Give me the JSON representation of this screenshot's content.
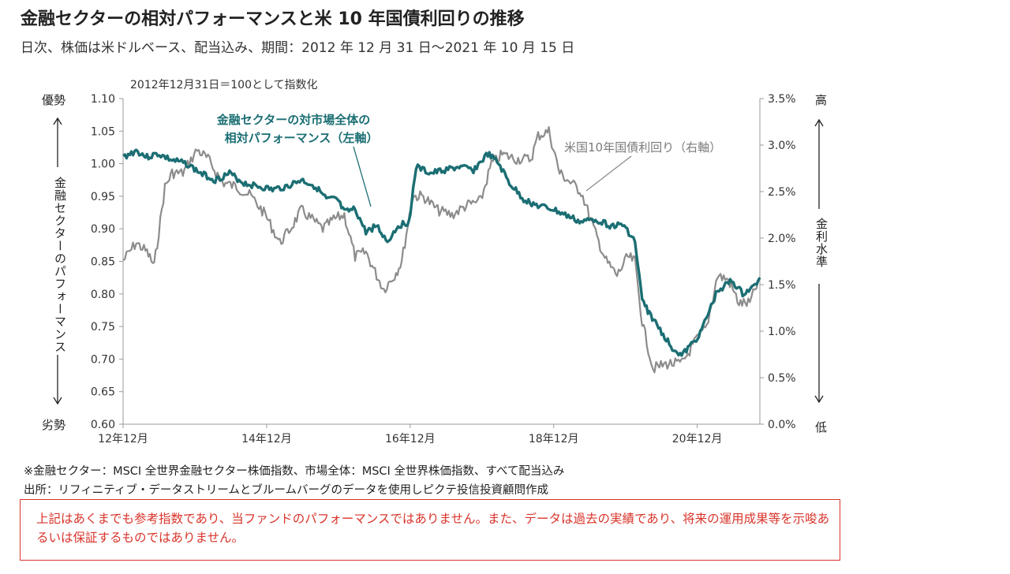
{
  "title": "金融セクターの相対パフォーマンスと米 10 年国債利回りの推移",
  "subtitle": "日次、株価は米ドルベース、配当込み、期間：2012 年 12 月 31 日～2021 年 10 月 15 日",
  "index_note": "2012年12月31日＝100として指数化",
  "left_axis": {
    "top_word": "優勢",
    "bottom_word": "劣勢",
    "label": "金融セクターのパフォーマンス"
  },
  "right_axis": {
    "top_word": "高",
    "bottom_word": "低",
    "label": "金利水準"
  },
  "notes": [
    "※金融セクター：MSCI 全世界金融セクター株価指数、市場全体：MSCI 全世界株価指数、すべて配当込み",
    "出所：リフィニティブ・データストリームとブルームバーグのデータを使用しピクテ投信投資顧問作成"
  ],
  "disclaimer": "上記はあくまでも参考指数であり、当ファンドのパフォーマンスではありません。また、データは過去の実績であり、将来の運用成果等を示唆あるいは保証するものではありません。",
  "colors": {
    "relative": "#1b6e73",
    "yield": "#8c8c8c",
    "disclaimer": "#d9342b"
  },
  "chart_data": {
    "type": "line",
    "x_tick_labels": [
      "12年12月",
      "14年12月",
      "16年12月",
      "18年12月",
      "20年12月"
    ],
    "x_tick_positions": [
      2012.917,
      2014.917,
      2016.917,
      2018.917,
      2020.917
    ],
    "xlim": [
      2012.917,
      2021.79
    ],
    "y_left": {
      "ticks": [
        "0.60",
        "0.65",
        "0.70",
        "0.75",
        "0.80",
        "0.85",
        "0.90",
        "0.95",
        "1.00",
        "1.05",
        "1.10"
      ],
      "ylim": [
        0.6,
        1.1
      ]
    },
    "y_right": {
      "ticks": [
        "0.0%",
        "0.5%",
        "1.0%",
        "1.5%",
        "2.0%",
        "2.5%",
        "3.0%",
        "3.5%"
      ],
      "ylim": [
        0.0,
        3.5
      ],
      "unit": "%"
    },
    "series": [
      {
        "name": "金融セクターの対市場全体の相対パフォーマンス（左軸）",
        "axis": "left",
        "x": [
          2012.92,
          2013.1,
          2013.25,
          2013.4,
          2013.6,
          2013.8,
          2014.0,
          2014.2,
          2014.4,
          2014.6,
          2014.8,
          2015.0,
          2015.2,
          2015.4,
          2015.6,
          2015.75,
          2015.9,
          2016.0,
          2016.15,
          2016.3,
          2016.45,
          2016.6,
          2016.75,
          2016.9,
          2017.0,
          2017.2,
          2017.4,
          2017.6,
          2017.8,
          2018.0,
          2018.15,
          2018.3,
          2018.5,
          2018.7,
          2018.9,
          2019.1,
          2019.3,
          2019.5,
          2019.7,
          2019.9,
          2020.05,
          2020.15,
          2020.25,
          2020.4,
          2020.55,
          2020.7,
          2020.9,
          2021.0,
          2021.2,
          2021.4,
          2021.55,
          2021.7,
          2021.79
        ],
        "y": [
          1.01,
          1.02,
          1.01,
          1.015,
          1.005,
          1.0,
          0.985,
          0.975,
          0.985,
          0.97,
          0.965,
          0.96,
          0.965,
          0.975,
          0.965,
          0.945,
          0.945,
          0.925,
          0.93,
          0.895,
          0.905,
          0.88,
          0.905,
          0.91,
          0.995,
          0.985,
          0.99,
          0.995,
          0.99,
          1.015,
          1.0,
          0.97,
          0.945,
          0.935,
          0.93,
          0.92,
          0.91,
          0.915,
          0.905,
          0.905,
          0.88,
          0.79,
          0.77,
          0.745,
          0.72,
          0.705,
          0.73,
          0.75,
          0.805,
          0.82,
          0.8,
          0.81,
          0.825
        ]
      },
      {
        "name": "米国10年国債利回り（右軸）",
        "axis": "right",
        "x": [
          2012.92,
          2013.1,
          2013.25,
          2013.35,
          2013.5,
          2013.6,
          2013.75,
          2013.95,
          2014.1,
          2014.3,
          2014.5,
          2014.7,
          2014.9,
          2015.1,
          2015.25,
          2015.4,
          2015.55,
          2015.7,
          2015.85,
          2016.0,
          2016.15,
          2016.3,
          2016.45,
          2016.55,
          2016.7,
          2016.8,
          2016.95,
          2017.1,
          2017.3,
          2017.5,
          2017.7,
          2017.9,
          2018.05,
          2018.2,
          2018.4,
          2018.6,
          2018.7,
          2018.85,
          2019.0,
          2019.15,
          2019.3,
          2019.5,
          2019.65,
          2019.8,
          2019.95,
          2020.05,
          2020.15,
          2020.3,
          2020.5,
          2020.7,
          2020.9,
          2021.05,
          2021.2,
          2021.35,
          2021.5,
          2021.65,
          2021.79
        ],
        "y": [
          1.76,
          1.95,
          1.85,
          1.7,
          2.55,
          2.7,
          2.7,
          2.95,
          2.85,
          2.6,
          2.55,
          2.45,
          2.25,
          1.95,
          2.1,
          2.3,
          2.2,
          2.1,
          2.2,
          2.25,
          1.8,
          1.85,
          1.6,
          1.45,
          1.6,
          1.75,
          2.45,
          2.45,
          2.3,
          2.25,
          2.35,
          2.4,
          2.8,
          2.9,
          2.85,
          2.85,
          3.1,
          3.15,
          2.7,
          2.6,
          2.5,
          2.05,
          1.75,
          1.6,
          1.8,
          1.75,
          1.1,
          0.6,
          0.65,
          0.65,
          0.9,
          1.05,
          1.6,
          1.55,
          1.3,
          1.3,
          1.58
        ]
      }
    ]
  }
}
